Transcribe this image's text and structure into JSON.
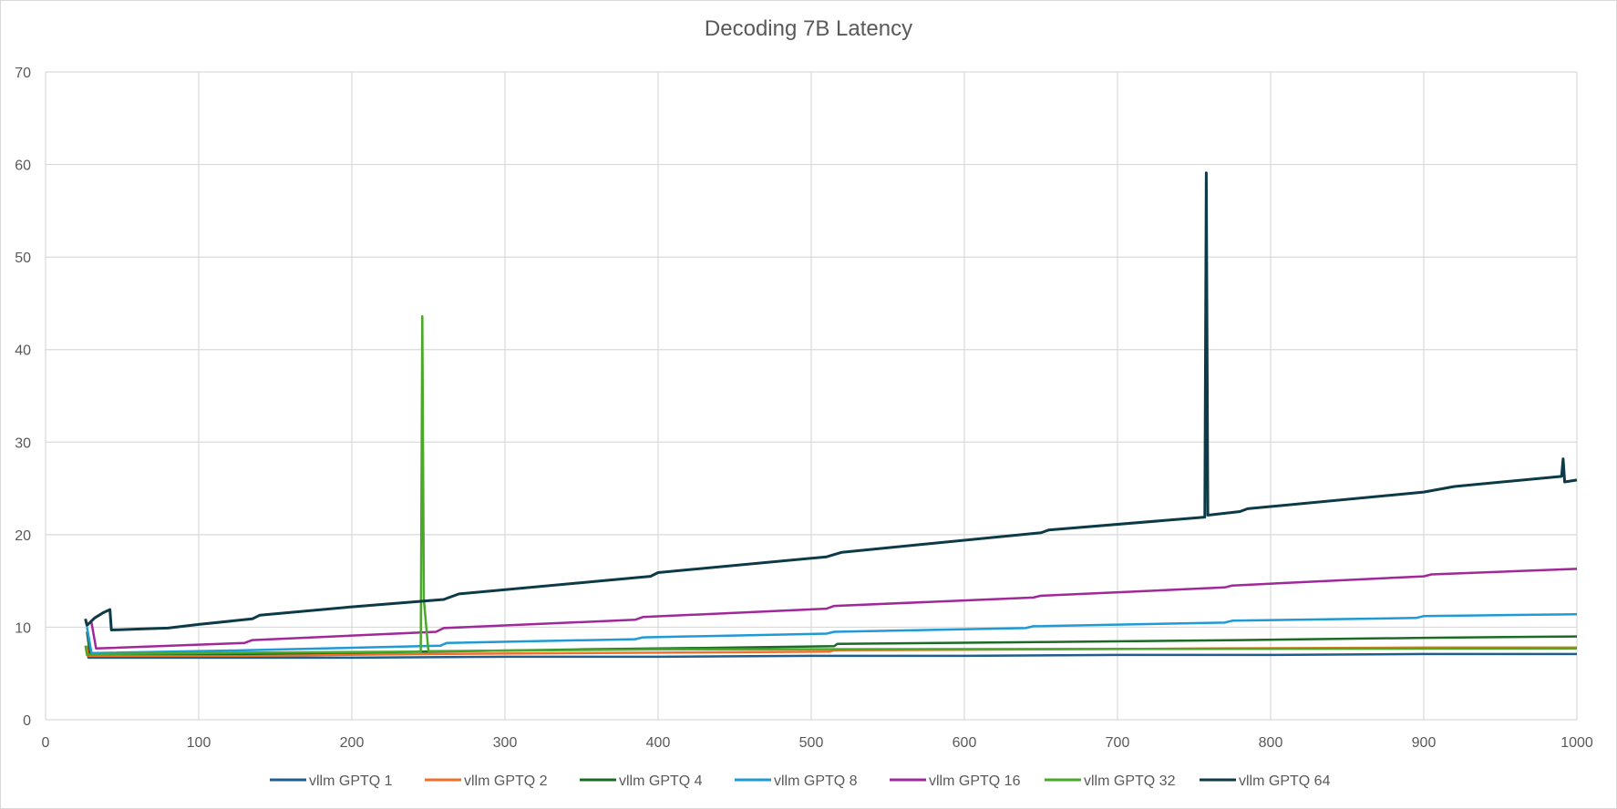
{
  "chart_data": {
    "type": "line",
    "title": "Decoding 7B Latency",
    "xlabel": "",
    "ylabel": "",
    "xlim": [
      0,
      1000
    ],
    "ylim": [
      0,
      70
    ],
    "x_ticks": [
      "0",
      "100",
      "200",
      "300",
      "400",
      "500",
      "600",
      "700",
      "800",
      "900",
      "1000"
    ],
    "y_ticks": [
      "0",
      "10",
      "20",
      "30",
      "40",
      "50",
      "60",
      "70"
    ],
    "grid": true,
    "legend_position": "bottom",
    "series": [
      {
        "name": "vllm GPTQ  1",
        "color": "#1f5d8c",
        "points": [
          [
            27,
            7.5
          ],
          [
            28,
            6.7
          ],
          [
            100,
            6.7
          ],
          [
            200,
            6.7
          ],
          [
            300,
            6.8
          ],
          [
            400,
            6.8
          ],
          [
            500,
            6.9
          ],
          [
            600,
            6.9
          ],
          [
            700,
            7.0
          ],
          [
            800,
            7.0
          ],
          [
            900,
            7.1
          ],
          [
            1000,
            7.1
          ]
        ]
      },
      {
        "name": "vllm GPTQ  2",
        "color": "#f07028",
        "points": [
          [
            27,
            8.0
          ],
          [
            28,
            6.9
          ],
          [
            130,
            6.9
          ],
          [
            250,
            7.1
          ],
          [
            350,
            7.2
          ],
          [
            450,
            7.3
          ],
          [
            512,
            7.35
          ],
          [
            515,
            7.5
          ],
          [
            650,
            7.6
          ],
          [
            760,
            7.7
          ],
          [
            900,
            7.8
          ],
          [
            1000,
            7.8
          ]
        ]
      },
      {
        "name": "vllm GPTQ  4",
        "color": "#1b6b24",
        "points": [
          [
            27,
            9.5
          ],
          [
            29,
            7.1
          ],
          [
            130,
            7.1
          ],
          [
            250,
            7.35
          ],
          [
            350,
            7.6
          ],
          [
            450,
            7.8
          ],
          [
            515,
            7.95
          ],
          [
            517,
            8.2
          ],
          [
            650,
            8.4
          ],
          [
            780,
            8.6
          ],
          [
            900,
            8.85
          ],
          [
            1000,
            9.0
          ]
        ]
      },
      {
        "name": "vllm GPTQ  8",
        "color": "#1e9ad6",
        "points": [
          [
            27,
            10.0
          ],
          [
            30,
            7.2
          ],
          [
            130,
            7.5
          ],
          [
            258,
            8.0
          ],
          [
            262,
            8.3
          ],
          [
            385,
            8.7
          ],
          [
            390,
            8.9
          ],
          [
            510,
            9.3
          ],
          [
            515,
            9.5
          ],
          [
            640,
            9.9
          ],
          [
            645,
            10.1
          ],
          [
            770,
            10.5
          ],
          [
            775,
            10.7
          ],
          [
            895,
            11.0
          ],
          [
            900,
            11.2
          ],
          [
            1000,
            11.4
          ]
        ]
      },
      {
        "name": "vllm GPTQ  16",
        "color": "#a0289b",
        "points": [
          [
            30,
            10.5
          ],
          [
            33,
            7.7
          ],
          [
            130,
            8.3
          ],
          [
            135,
            8.6
          ],
          [
            255,
            9.5
          ],
          [
            260,
            9.9
          ],
          [
            385,
            10.8
          ],
          [
            390,
            11.1
          ],
          [
            510,
            12.0
          ],
          [
            515,
            12.3
          ],
          [
            645,
            13.2
          ],
          [
            650,
            13.4
          ],
          [
            770,
            14.3
          ],
          [
            775,
            14.5
          ],
          [
            900,
            15.5
          ],
          [
            905,
            15.7
          ],
          [
            1000,
            16.3
          ]
        ]
      },
      {
        "name": "vllm GPTQ  32",
        "color": "#4aa82a",
        "points": [
          [
            26,
            8.0
          ],
          [
            27,
            7.0
          ],
          [
            40,
            7.1
          ],
          [
            130,
            7.25
          ],
          [
            245,
            7.35
          ],
          [
            246,
            43.6
          ],
          [
            247,
            13.0
          ],
          [
            250,
            7.4
          ],
          [
            400,
            7.6
          ],
          [
            1000,
            7.7
          ]
        ]
      },
      {
        "name": "vllm GPTQ  64",
        "color": "#0c3a46",
        "points": [
          [
            26,
            10.9
          ],
          [
            27,
            10.2
          ],
          [
            32,
            11.0
          ],
          [
            38,
            11.6
          ],
          [
            42,
            11.9
          ],
          [
            43,
            9.7
          ],
          [
            60,
            9.8
          ],
          [
            80,
            9.9
          ],
          [
            100,
            10.3
          ],
          [
            135,
            10.9
          ],
          [
            140,
            11.3
          ],
          [
            200,
            12.2
          ],
          [
            260,
            13.0
          ],
          [
            270,
            13.6
          ],
          [
            395,
            15.5
          ],
          [
            400,
            15.9
          ],
          [
            510,
            17.6
          ],
          [
            520,
            18.1
          ],
          [
            650,
            20.2
          ],
          [
            655,
            20.5
          ],
          [
            757,
            21.9
          ],
          [
            758,
            59.1
          ],
          [
            759,
            22.1
          ],
          [
            780,
            22.5
          ],
          [
            785,
            22.8
          ],
          [
            900,
            24.6
          ],
          [
            920,
            25.2
          ],
          [
            990,
            26.3
          ],
          [
            991,
            28.2
          ],
          [
            992,
            25.7
          ],
          [
            1000,
            25.9
          ]
        ]
      }
    ]
  }
}
